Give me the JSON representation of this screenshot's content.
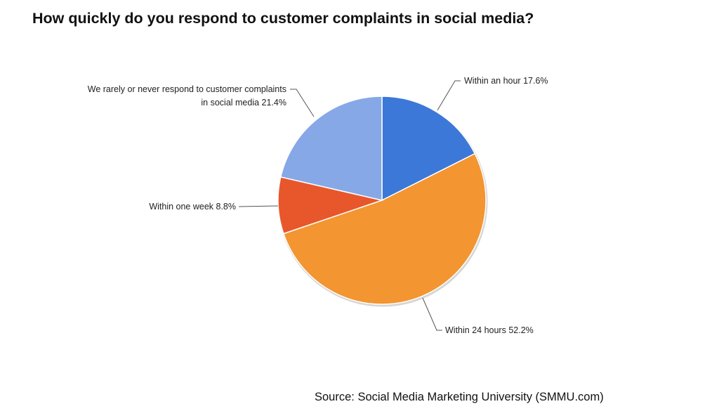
{
  "chart_data": {
    "type": "pie",
    "title": "How quickly do you respond to customer complaints in social media?",
    "source": "Source: Social Media Marketing University (SMMU.com)",
    "start_angle": "12 o'clock, clockwise",
    "slices": [
      {
        "label": "Within an hour",
        "value": 17.6,
        "display": "Within an hour 17.6%",
        "color": "#3c78d8"
      },
      {
        "label": "Within 24 hours",
        "value": 52.2,
        "display": "Within 24 hours 52.2%",
        "color": "#f39530"
      },
      {
        "label": "Within one week",
        "value": 8.8,
        "display": "Within one week 8.8%",
        "color": "#e8572b"
      },
      {
        "label": "We rarely or never respond to customer complaints in social media",
        "value": 21.4,
        "display_lines": [
          "We rarely or never respond to customer complaints",
          "in social media 21.4%"
        ],
        "color": "#86a8e7"
      }
    ]
  }
}
